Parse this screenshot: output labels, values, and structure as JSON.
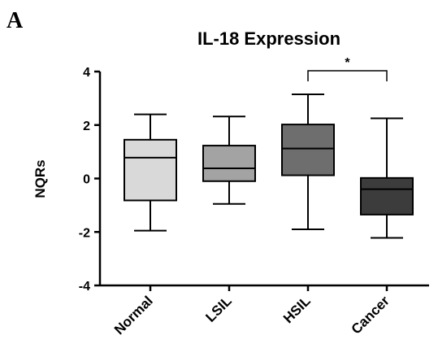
{
  "panel_letter": "A",
  "chart_data": {
    "type": "box",
    "title": "IL-18 Expression",
    "xlabel": "",
    "ylabel": "NQRs",
    "ylim": [
      -4,
      4
    ],
    "yticks": [
      -4,
      -2,
      0,
      2,
      4
    ],
    "yticks_labels": [
      "-4",
      "-2",
      "0",
      "2",
      "4"
    ],
    "categories": [
      "Normal",
      "LSIL",
      "HSIL",
      "Cancer"
    ],
    "boxes": [
      {
        "category": "Normal",
        "min": -1.95,
        "q1": -0.82,
        "median": 0.78,
        "q3": 1.45,
        "max": 2.4,
        "color": "#d9d9d9"
      },
      {
        "category": "LSIL",
        "min": -0.95,
        "q1": -0.1,
        "median": 0.38,
        "q3": 1.23,
        "max": 2.32,
        "color": "#a3a3a3"
      },
      {
        "category": "HSIL",
        "min": -1.9,
        "q1": 0.12,
        "median": 1.12,
        "q3": 2.02,
        "max": 3.15,
        "color": "#6e6e6e"
      },
      {
        "category": "Cancer",
        "min": -2.22,
        "q1": -1.35,
        "median": -0.4,
        "q3": 0.02,
        "max": 2.25,
        "color": "#3c3c3c"
      }
    ],
    "annotations": [
      {
        "type": "significance",
        "from": "HSIL",
        "to": "Cancer",
        "label": "*"
      }
    ],
    "grid": false,
    "legend": "none"
  }
}
